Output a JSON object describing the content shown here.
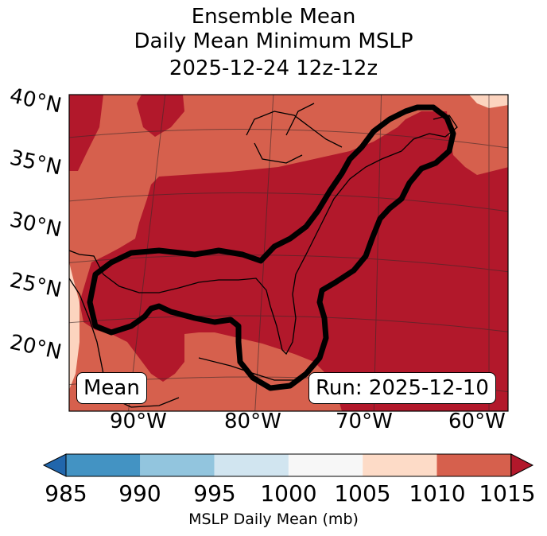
{
  "title": {
    "line1": "Ensemble Mean",
    "line2": "Daily Mean Minimum MSLP",
    "line3": "2025-12-24 12z-12z"
  },
  "map": {
    "lat_labels": [
      "40°N",
      "35°N",
      "30°N",
      "25°N",
      "20°N"
    ],
    "lon_labels": [
      "90°W",
      "80°W",
      "70°W",
      "60°W"
    ],
    "mean_box": "Mean",
    "run_box": "Run: 2025-12-10",
    "fill_colors": {
      "lt_1005_peach": "#fcd4bf",
      "r1010_1015": "#d6604d",
      "ge_1015": "#b2182b",
      "contour": "#000000",
      "coast": "#000000"
    }
  },
  "colorbar": {
    "ticks": [
      "985",
      "990",
      "995",
      "1000",
      "1005",
      "1010",
      "1015"
    ],
    "label": "MSLP Daily Mean (mb)",
    "colors": [
      "#2166ac",
      "#4393c3",
      "#92c5de",
      "#d1e5f0",
      "#f7f7f7",
      "#fddbc7",
      "#d6604d",
      "#b2182b"
    ]
  }
}
